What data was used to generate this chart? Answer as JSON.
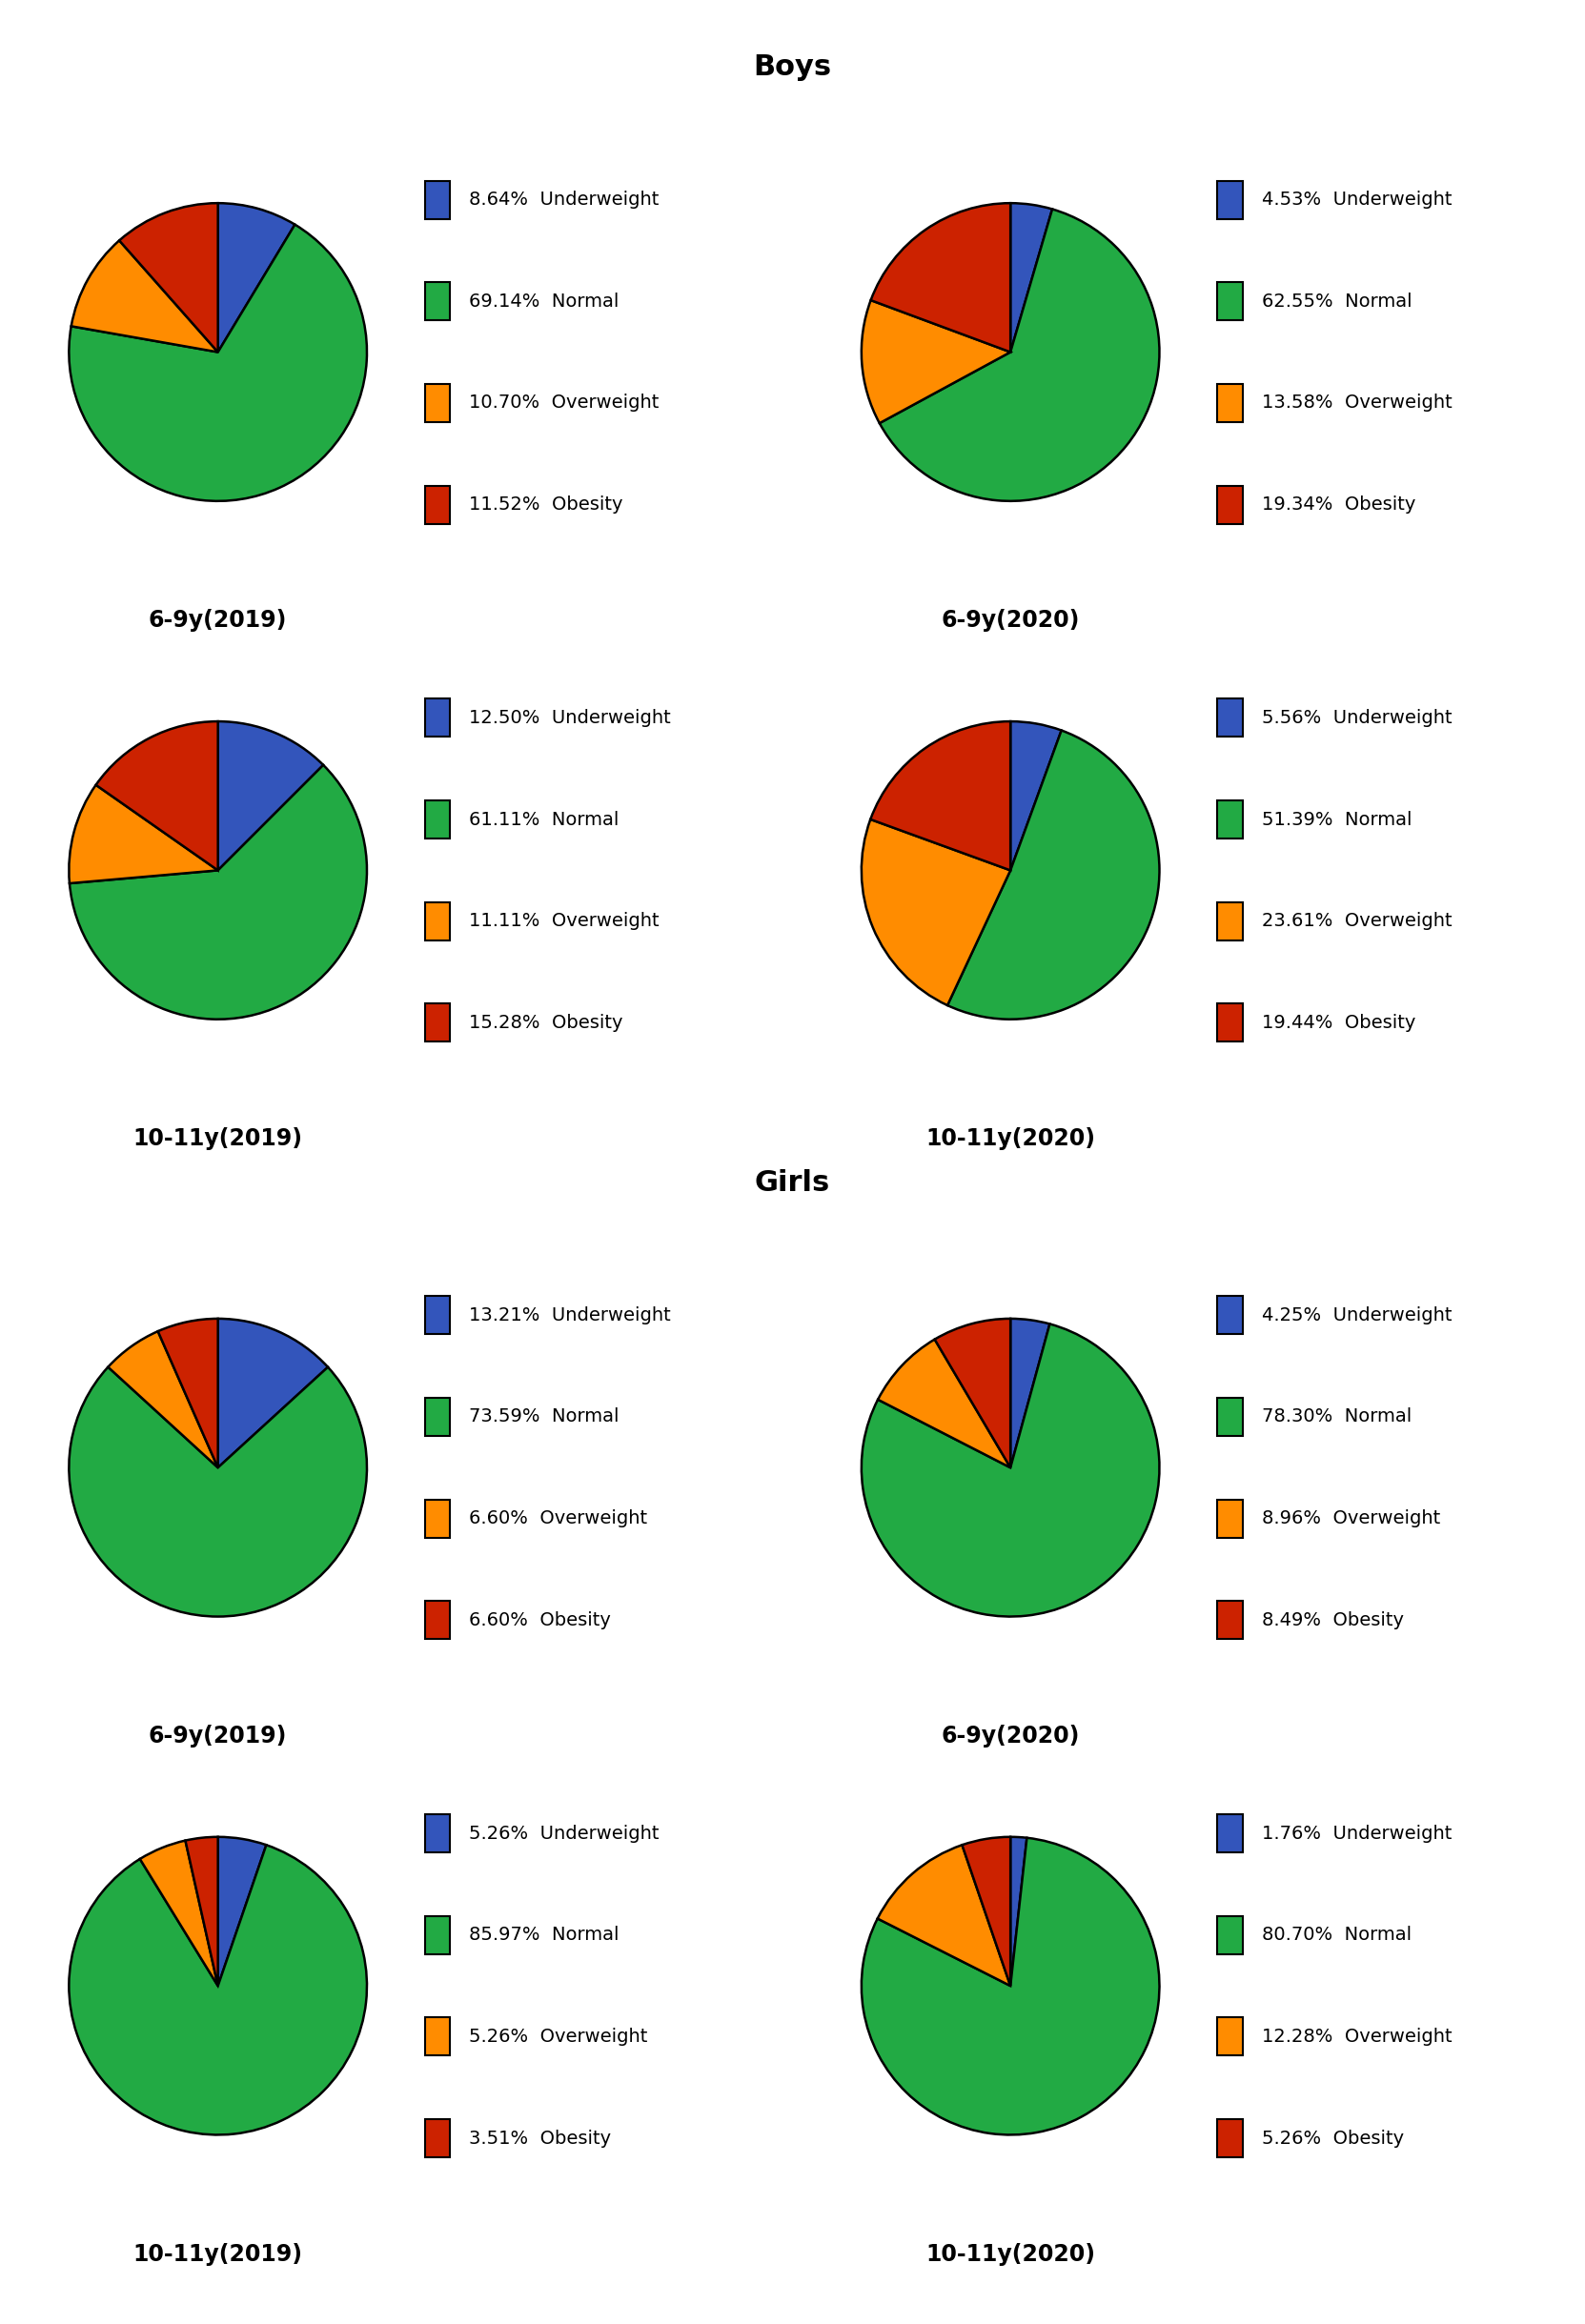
{
  "boys_title": "Boys",
  "girls_title": "Girls",
  "colors": [
    "#3355bb",
    "#22aa44",
    "#ff8c00",
    "#cc2200"
  ],
  "labels": [
    "Underweight",
    "Normal",
    "Overweight",
    "Obesity"
  ],
  "charts": [
    {
      "group": "boys",
      "row": 0,
      "col": 0,
      "title": "6-9y(2019)",
      "values": [
        8.64,
        69.14,
        10.7,
        11.52
      ]
    },
    {
      "group": "boys",
      "row": 0,
      "col": 1,
      "title": "6-9y(2020)",
      "values": [
        4.53,
        62.55,
        13.58,
        19.34
      ]
    },
    {
      "group": "boys",
      "row": 1,
      "col": 0,
      "title": "10-11y(2019)",
      "values": [
        12.5,
        61.11,
        11.11,
        15.28
      ]
    },
    {
      "group": "boys",
      "row": 1,
      "col": 1,
      "title": "10-11y(2020)",
      "values": [
        5.56,
        51.39,
        23.61,
        19.44
      ]
    },
    {
      "group": "girls",
      "row": 0,
      "col": 0,
      "title": "6-9y(2019)",
      "values": [
        13.21,
        73.59,
        6.6,
        6.6
      ]
    },
    {
      "group": "girls",
      "row": 0,
      "col": 1,
      "title": "6-9y(2020)",
      "values": [
        4.25,
        78.3,
        8.96,
        8.49
      ]
    },
    {
      "group": "girls",
      "row": 1,
      "col": 0,
      "title": "10-11y(2019)",
      "values": [
        5.26,
        85.97,
        5.26,
        3.51
      ]
    },
    {
      "group": "girls",
      "row": 1,
      "col": 1,
      "title": "10-11y(2020)",
      "values": [
        1.76,
        80.7,
        12.28,
        5.26
      ]
    }
  ],
  "section_title_fontsize": 22,
  "pie_title_fontsize": 17,
  "legend_fontsize": 14,
  "wedge_linewidth": 1.8,
  "background_color": "#ffffff",
  "startangle": 90,
  "counterclock": false
}
